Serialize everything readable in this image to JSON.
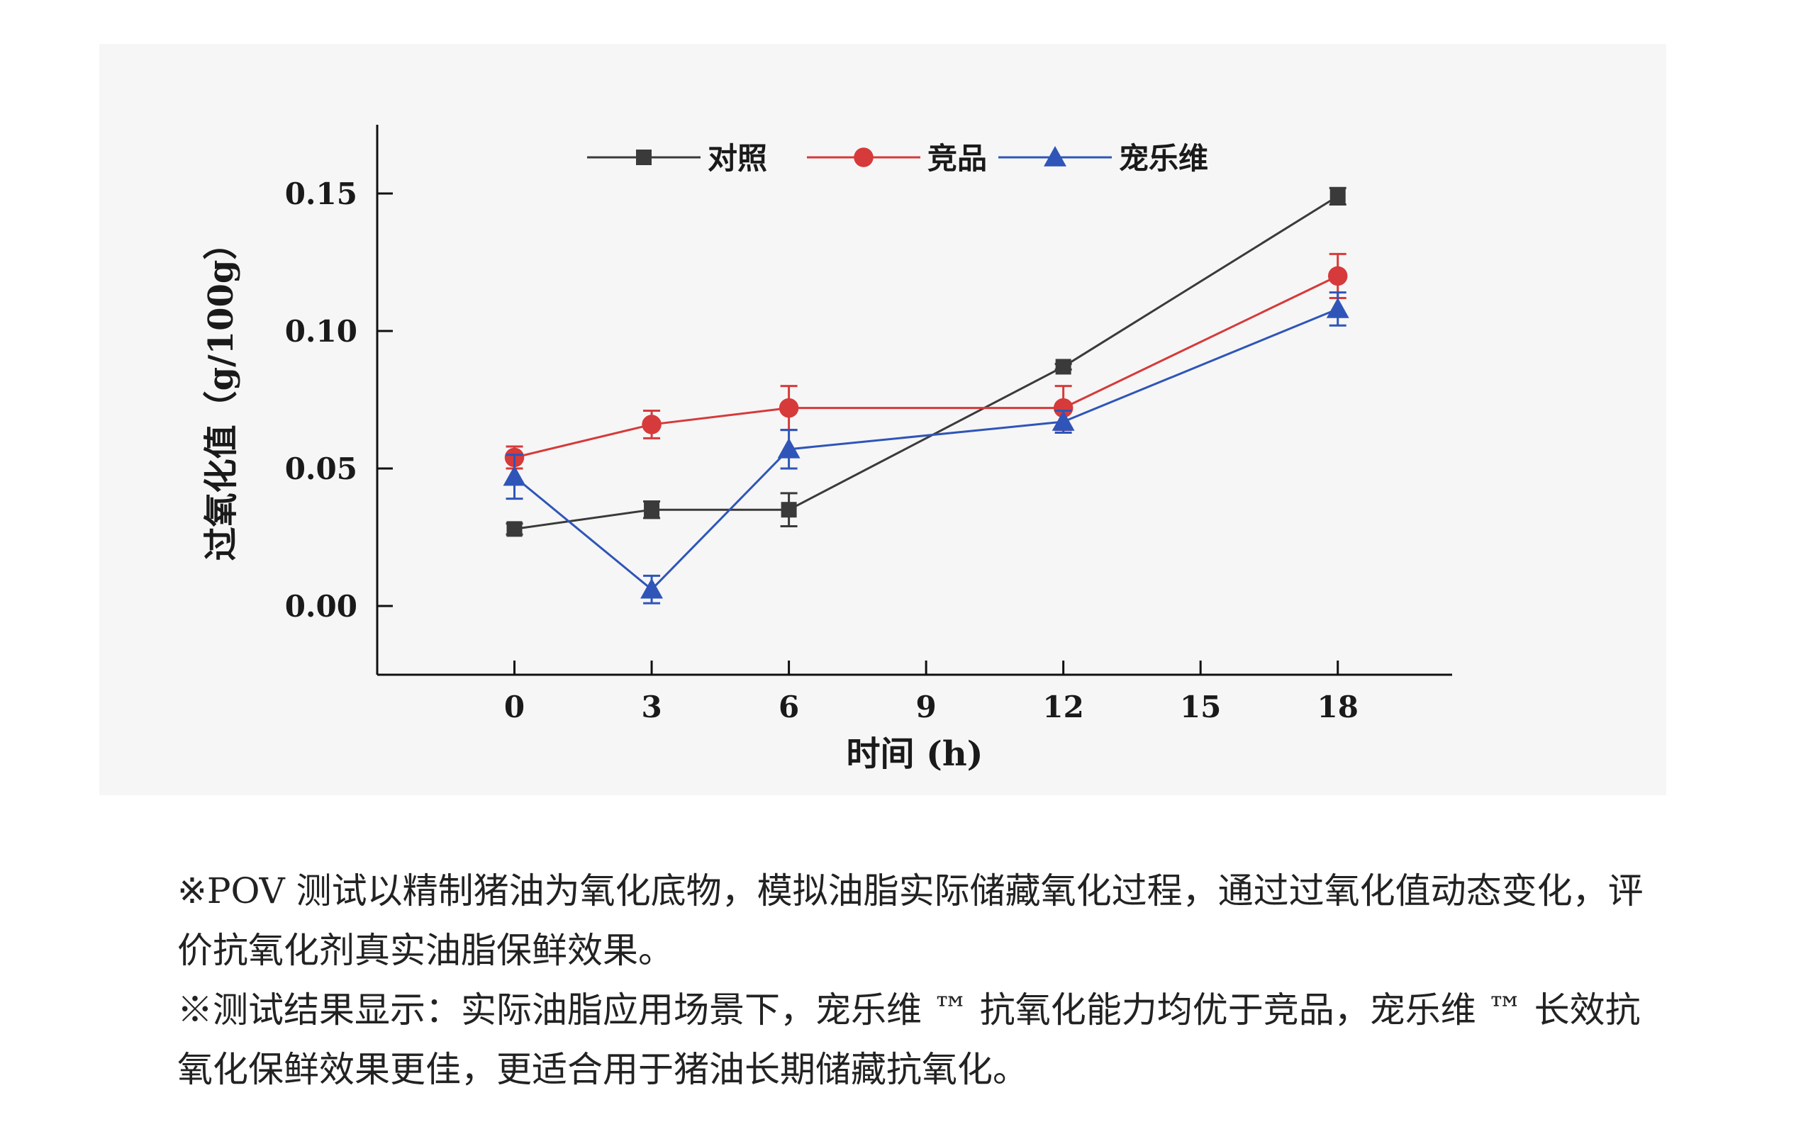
{
  "chart_data": {
    "type": "line",
    "xlabel": "时间 (h)",
    "ylabel": "过氧化值（g/100g）",
    "xlim": [
      -3,
      20.5
    ],
    "ylim": [
      -0.025,
      0.175
    ],
    "x_ticks": [
      "0",
      "3",
      "6",
      "9",
      "12",
      "15",
      "18"
    ],
    "y_ticks": [
      "0.00",
      "0.05",
      "0.10",
      "0.15"
    ],
    "x_tick_values": [
      0,
      3,
      6,
      9,
      12,
      15,
      18
    ],
    "y_tick_values": [
      0,
      0.05,
      0.1,
      0.15
    ],
    "legend_position": "top",
    "series": [
      {
        "name": "对照",
        "color": "#3a3a3a",
        "marker": "square",
        "x": [
          0,
          3,
          6,
          12,
          18
        ],
        "values": [
          0.028,
          0.035,
          0.035,
          0.087,
          0.149
        ],
        "errors": [
          0.002,
          0.003,
          0.006,
          0.001,
          0.003
        ]
      },
      {
        "name": "竞品",
        "color": "#d63a3a",
        "marker": "circle",
        "x": [
          0,
          3,
          6,
          12,
          18
        ],
        "values": [
          0.054,
          0.066,
          0.072,
          0.072,
          0.12
        ],
        "errors": [
          0.004,
          0.005,
          0.008,
          0.008,
          0.008
        ]
      },
      {
        "name": "宠乐维",
        "color": "#2f55b8",
        "marker": "triangle",
        "x": [
          0,
          3,
          6,
          12,
          18
        ],
        "values": [
          0.047,
          0.006,
          0.057,
          0.067,
          0.108
        ],
        "errors": [
          0.008,
          0.005,
          0.007,
          0.004,
          0.006
        ]
      }
    ]
  },
  "notes": [
    "※POV 测试以精制猪油为氧化底物，模拟油脂实际储藏氧化过程，通过过氧化值动态变化，评价抗氧化剂真实油脂保鲜效果。",
    "※测试结果显示：实际油脂应用场景下，宠乐维 ™ 抗氧化能力均优于竞品，宠乐维 ™ 长效抗氧化保鲜效果更佳，更适合用于猪油长期储藏抗氧化。"
  ]
}
